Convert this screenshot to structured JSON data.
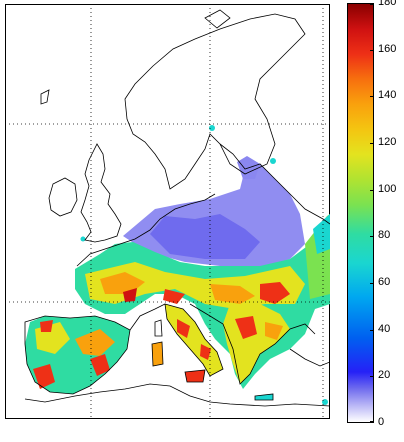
{
  "colorbar": {
    "min": 0,
    "max": 180,
    "ticks": [
      "0",
      "20",
      "40",
      "60",
      "80",
      "100",
      "120",
      "140",
      "160",
      "180"
    ]
  },
  "map": {
    "grid": true,
    "grid_style": "dotted",
    "colormap": "jet-like (white at 0 → blue → cyan → green → yellow → orange → red → dark red)"
  },
  "colors": {
    "coast": "#000000",
    "grid": "#000000",
    "low": "#8a87f0",
    "mid": "#2fdca2",
    "high": "#ee3016"
  }
}
